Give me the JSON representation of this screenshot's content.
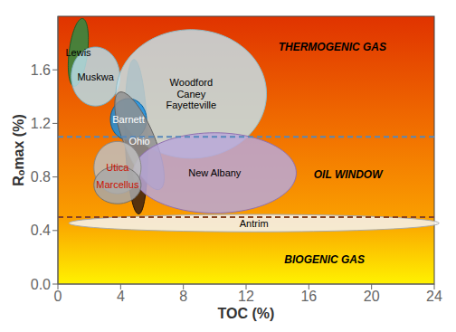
{
  "chart_data": {
    "type": "ellipse",
    "xlabel": "TOC (%)",
    "ylabel": "Rₒmax (%)",
    "xlim": [
      0,
      24
    ],
    "ylim": [
      0,
      2.0
    ],
    "xticks": [
      0,
      4,
      8,
      12,
      16,
      20,
      24
    ],
    "yticks": [
      {
        "value": 0,
        "label": "0.0"
      },
      0.4,
      0.8,
      1.2,
      1.6
    ],
    "background": [
      {
        "y": 2.0,
        "color": "#e03300"
      },
      {
        "y": 1.1,
        "color": "#f27300"
      },
      {
        "y": 0.5,
        "color": "#fa9e00"
      },
      {
        "y": 0,
        "color": "#fff200"
      }
    ],
    "hlines": [
      {
        "y": 1.1,
        "color": "#5588bb",
        "line_style": "dashed"
      },
      {
        "y": 0.5,
        "color": "#884422",
        "line_style": "dashed"
      }
    ],
    "ellipses": [
      {
        "cx": 5.0,
        "cy": 1.1,
        "rx": 0.75,
        "ry": 0.55,
        "angle": -20,
        "color": "#3a2010",
        "edge_color": "#251508"
      },
      {
        "name": "Lewis",
        "cx": 1.3,
        "cy": 1.73,
        "rx": 0.65,
        "ry": 0.23,
        "angle": 10,
        "color": "#2e8b44",
        "edge_color": "#1a5c28",
        "label_color": "black"
      },
      {
        "name": "Muskwa",
        "cx": 2.4,
        "cy": 1.55,
        "rx": 1.55,
        "ry": 0.22,
        "angle": 0,
        "color": "#b8dce8",
        "edge_color": "#7aaec0",
        "label_color": "black"
      },
      {
        "name": "Woodford\nCaney\nFayetteville",
        "cx": 8.5,
        "cy": 1.42,
        "rx": 4.8,
        "ry": 0.48,
        "angle": 0,
        "color": "#c5dfe8",
        "edge_color": "#90bcc8",
        "label_color": "black"
      },
      {
        "name": "Barnett",
        "cx": 4.5,
        "cy": 1.23,
        "rx": 1.15,
        "ry": 0.155,
        "angle": 0,
        "color": "#1a8fe0",
        "edge_color": "#0060a0",
        "label_color": "white"
      },
      {
        "name": "Ohio",
        "cx": 5.2,
        "cy": 1.07,
        "rx": 1.6,
        "ry": 0.24,
        "angle": -10,
        "color": "#909090",
        "edge_color": "#606060",
        "label_color": "white"
      },
      {
        "name": "New Albany",
        "cx": 10.0,
        "cy": 0.83,
        "rx": 5.2,
        "ry": 0.3,
        "angle": 0,
        "color": "#b8a8d8",
        "edge_color": "#9070b0",
        "label_color": "black"
      },
      {
        "name": "Utica",
        "cx": 3.8,
        "cy": 0.87,
        "rx": 1.5,
        "ry": 0.195,
        "angle": 0,
        "color": "#c0c0c0",
        "edge_color": "#888888",
        "label_color": "#cc1100"
      },
      {
        "name": "Marcellus",
        "cx": 3.8,
        "cy": 0.74,
        "rx": 1.5,
        "ry": 0.14,
        "angle": 0,
        "color": "#a8a8a8",
        "edge_color": "#707070",
        "label_color": "#cc1100"
      },
      {
        "name": "Antrim",
        "cx": 12.5,
        "cy": 0.455,
        "rx": 11.8,
        "ry": 0.065,
        "angle": 0,
        "color": "#f5f5f5",
        "edge_color": "#aaaaaa",
        "label_color": "black"
      }
    ],
    "annotations": [
      {
        "text": "THERMOGENIC GAS",
        "x": 17.5,
        "y": 1.77
      },
      {
        "text": "OIL WINDOW",
        "x": 18.5,
        "y": 0.82
      },
      {
        "text": "BIOGENIC GAS",
        "x": 17.0,
        "y": 0.18
      }
    ]
  }
}
